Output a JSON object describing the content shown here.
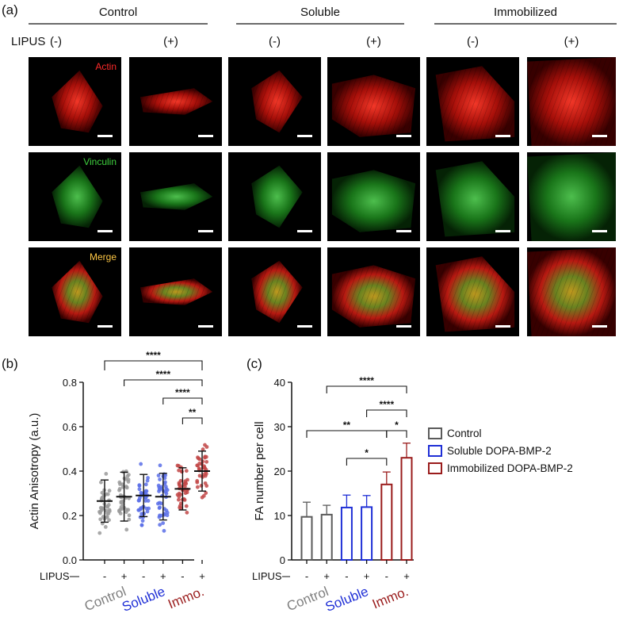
{
  "panel_a": {
    "letter": "(a)",
    "groups": [
      "Control",
      "Soluble",
      "Immobilized"
    ],
    "lipus_label": "LIPUS",
    "lipus_states": [
      "(-)",
      "(+)",
      "(-)",
      "(+)",
      "(-)",
      "(+)"
    ],
    "channels": [
      {
        "name": "Actin",
        "color": "#ff2a2a"
      },
      {
        "name": "Vinculin",
        "color": "#3fd13f"
      },
      {
        "name": "Merge",
        "color": "#ffc845"
      }
    ]
  },
  "chart_data": [
    {
      "type": "scatter",
      "panel": "(b)",
      "ylabel": "Actin  Anisotropy (a.u.)",
      "ylim": [
        0,
        0.8
      ],
      "yticks": [
        "0.0",
        "0.2",
        "0.4",
        "0.6",
        "0.8"
      ],
      "xlabel_row": "LIPUS",
      "lipus": [
        "-",
        "+",
        "-",
        "+",
        "-",
        "+"
      ],
      "group_labels": [
        {
          "label": "Control",
          "color": "#7f7f7f"
        },
        {
          "label": "Soluble",
          "color": "#1f2fd6"
        },
        {
          "label": "Immo.",
          "color": "#9a1c1c"
        }
      ],
      "series": [
        {
          "mean": 0.265,
          "sd": 0.095,
          "color": "#9a9a9a"
        },
        {
          "mean": 0.285,
          "sd": 0.11,
          "color": "#9a9a9a"
        },
        {
          "mean": 0.29,
          "sd": 0.095,
          "color": "#5a6ee8"
        },
        {
          "mean": 0.285,
          "sd": 0.105,
          "color": "#5a6ee8"
        },
        {
          "mean": 0.32,
          "sd": 0.095,
          "color": "#c24848"
        },
        {
          "mean": 0.4,
          "sd": 0.09,
          "color": "#c24848"
        }
      ],
      "significance": [
        {
          "from": 0,
          "to": 5,
          "label": "****"
        },
        {
          "from": 1,
          "to": 5,
          "label": "****"
        },
        {
          "from": 3,
          "to": 5,
          "label": "****"
        },
        {
          "from": 4,
          "to": 5,
          "label": "**"
        }
      ]
    },
    {
      "type": "bar",
      "panel": "(c)",
      "ylabel": "FA number per cell",
      "ylim": [
        0,
        40
      ],
      "yticks": [
        "0",
        "10",
        "20",
        "30",
        "40"
      ],
      "xlabel_row": "LIPUS",
      "lipus": [
        "-",
        "+",
        "-",
        "+",
        "-",
        "+"
      ],
      "group_labels": [
        {
          "label": "Control",
          "color": "#7f7f7f"
        },
        {
          "label": "Soluble",
          "color": "#1f2fd6"
        },
        {
          "label": "Immo.",
          "color": "#9a1c1c"
        }
      ],
      "values": [
        9.7,
        10.2,
        11.8,
        11.9,
        17.0,
        23.0
      ],
      "errors": [
        3.3,
        2.1,
        2.8,
        2.6,
        2.8,
        3.3
      ],
      "colors": [
        "#5a5a5a",
        "#5a5a5a",
        "#1f2fd6",
        "#1f2fd6",
        "#9a1c1c",
        "#9a1c1c"
      ],
      "legend": [
        {
          "label": "Control",
          "color": "#5a5a5a"
        },
        {
          "label": "Soluble DOPA-BMP-2",
          "color": "#1f2fd6"
        },
        {
          "label": "Immobilized DOPA-BMP-2",
          "color": "#9a1c1c"
        }
      ],
      "significance": [
        {
          "from": 1,
          "to": 5,
          "label": "****"
        },
        {
          "from": 3,
          "to": 5,
          "label": "****"
        },
        {
          "from": 0,
          "to": 4,
          "label": "**"
        },
        {
          "from": 4,
          "to": 5,
          "label": "*"
        },
        {
          "from": 2,
          "to": 4,
          "label": "*"
        }
      ]
    }
  ]
}
